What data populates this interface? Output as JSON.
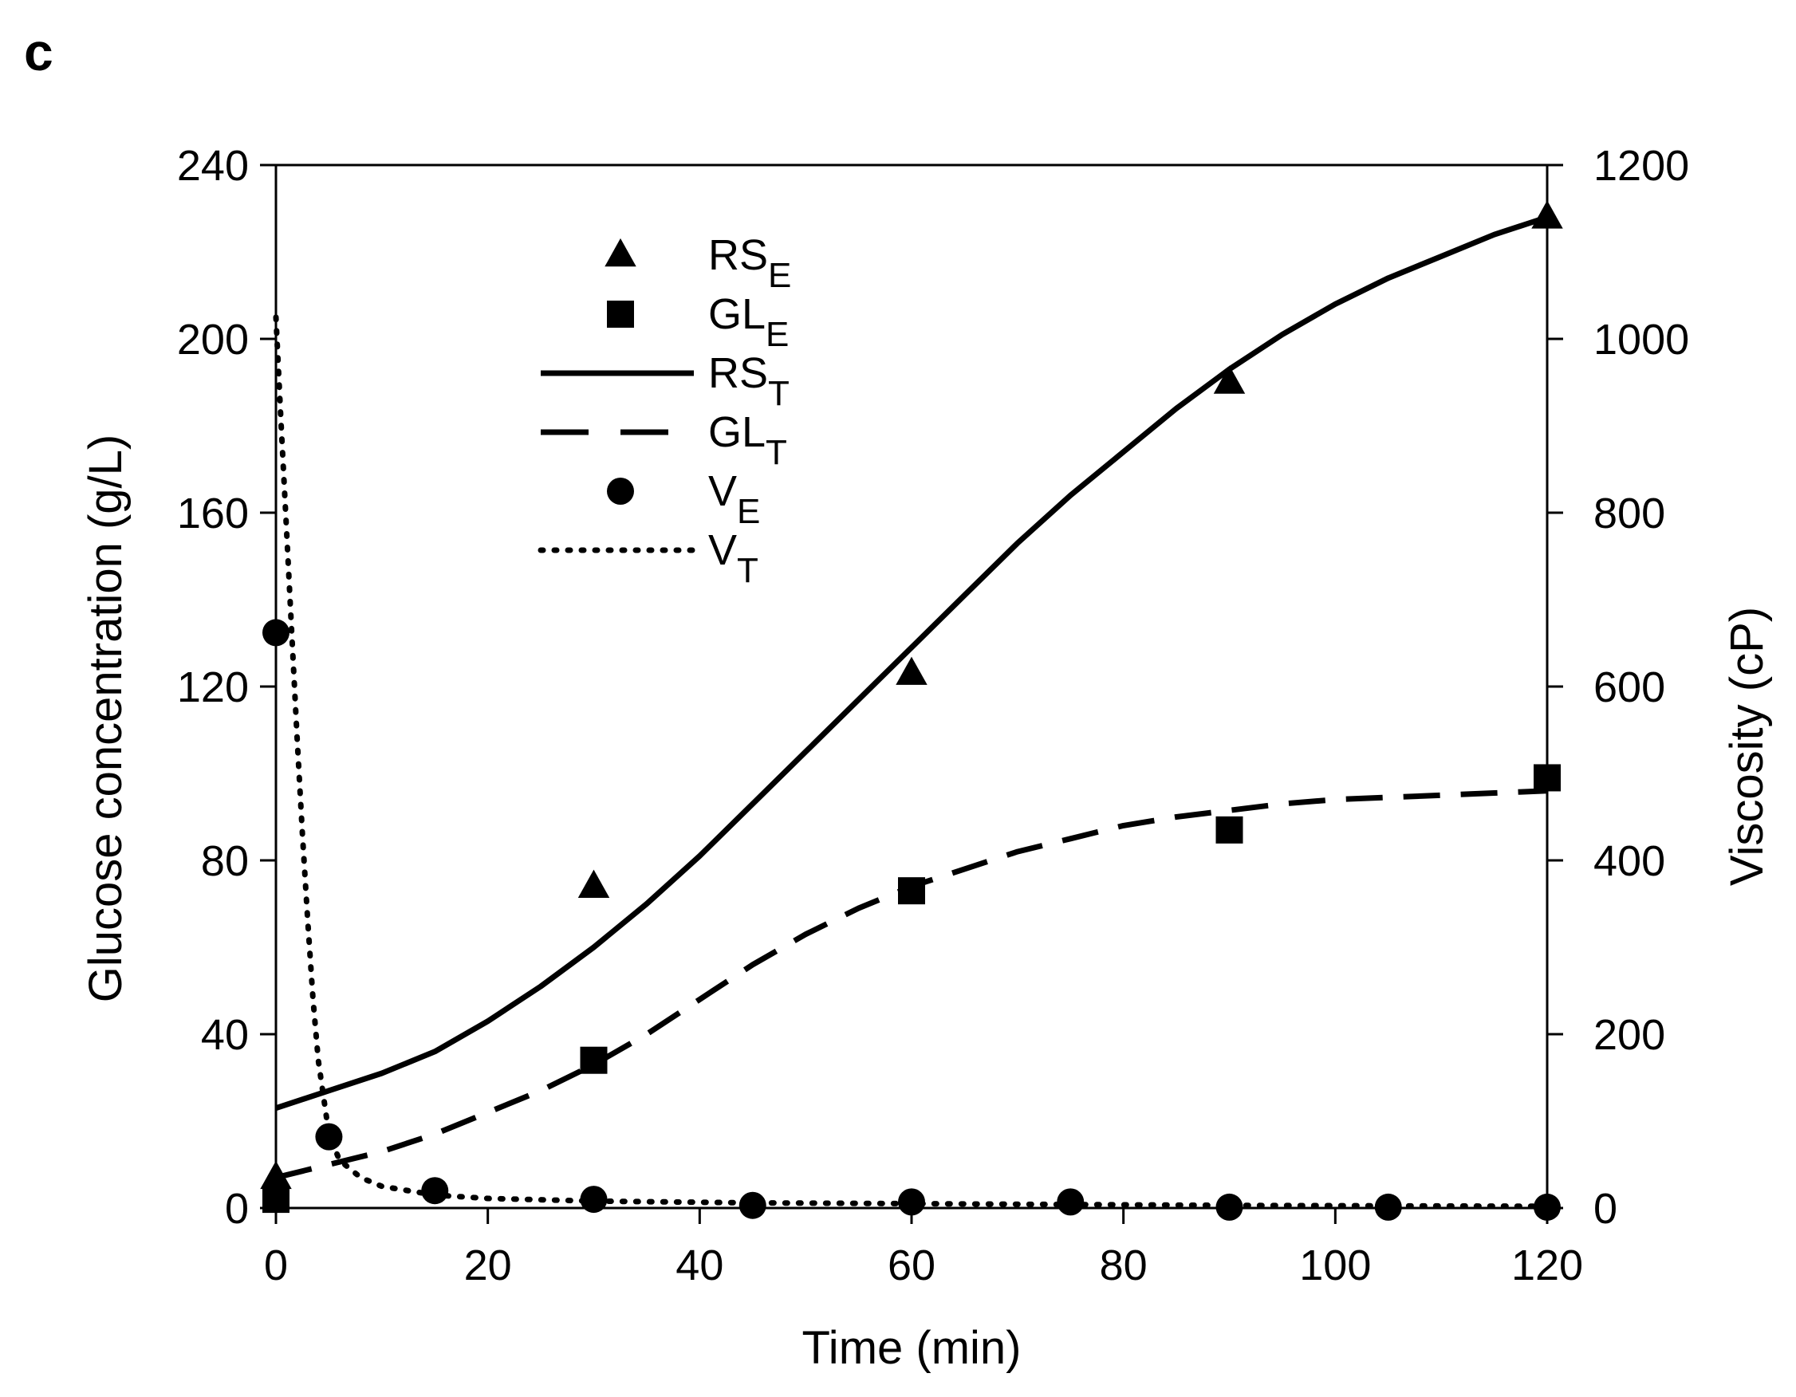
{
  "panel_label": "c",
  "chart_data": {
    "type": "scatter",
    "xlabel": "Time (min)",
    "ylabel": "Glucose concentration (g/L)",
    "y2label": "Viscosity (cP)",
    "xlim": [
      0,
      120
    ],
    "ylim": [
      0,
      240
    ],
    "y2lim": [
      0,
      1200
    ],
    "x_ticks": [
      0,
      20,
      40,
      60,
      80,
      100,
      120
    ],
    "y_ticks": [
      0,
      40,
      80,
      120,
      160,
      200,
      240
    ],
    "y2_ticks": [
      0,
      200,
      400,
      600,
      800,
      1000,
      1200
    ],
    "grid": false,
    "legend_position": "top-left",
    "colors": {
      "ink": "#000000",
      "background": "#ffffff"
    },
    "series": [
      {
        "name": "RSE",
        "label_main": "RS",
        "label_sub": "E",
        "kind": "marker",
        "marker": "triangle",
        "axis": "left",
        "x": [
          0,
          30,
          60,
          90,
          120
        ],
        "y": [
          7,
          74,
          123,
          190,
          228
        ]
      },
      {
        "name": "GLE",
        "label_main": "GL",
        "label_sub": "E",
        "kind": "marker",
        "marker": "square",
        "axis": "left",
        "x": [
          0,
          30,
          60,
          90,
          120
        ],
        "y": [
          2,
          34,
          73,
          87,
          99
        ]
      },
      {
        "name": "RST",
        "label_main": "RS",
        "label_sub": "T",
        "kind": "line",
        "line": "solid",
        "axis": "left",
        "x": [
          0,
          5,
          10,
          15,
          20,
          25,
          30,
          35,
          40,
          45,
          50,
          55,
          60,
          65,
          70,
          75,
          80,
          85,
          90,
          95,
          100,
          105,
          110,
          115,
          120
        ],
        "y": [
          23,
          27,
          31,
          36,
          43,
          51,
          60,
          70,
          81,
          93,
          105,
          117,
          129,
          141,
          153,
          164,
          174,
          184,
          193,
          201,
          208,
          214,
          219,
          224,
          228
        ]
      },
      {
        "name": "GLT",
        "label_main": "GL",
        "label_sub": "T",
        "kind": "line",
        "line": "dashed",
        "axis": "left",
        "x": [
          0,
          5,
          10,
          15,
          20,
          25,
          30,
          35,
          40,
          45,
          50,
          55,
          60,
          65,
          70,
          75,
          80,
          85,
          90,
          95,
          100,
          105,
          110,
          115,
          120
        ],
        "y": [
          7,
          10,
          13,
          17,
          22,
          27,
          33,
          40,
          48,
          56,
          63,
          69,
          74,
          78,
          82,
          85,
          88,
          90,
          91.5,
          93,
          94,
          94.5,
          95,
          95.5,
          96
        ]
      },
      {
        "name": "VE",
        "label_main": "V",
        "label_sub": "E",
        "kind": "marker",
        "marker": "circle",
        "axis": "right",
        "x": [
          0,
          5,
          15,
          30,
          45,
          60,
          75,
          90,
          105,
          120
        ],
        "y": [
          662,
          82,
          20,
          10,
          3,
          7,
          7,
          1,
          1,
          1
        ]
      },
      {
        "name": "VT",
        "label_main": "V",
        "label_sub": "T",
        "kind": "line",
        "line": "dotted",
        "axis": "right",
        "x": [
          0,
          0.5,
          1,
          1.5,
          2,
          2.5,
          3,
          3.5,
          4,
          5,
          6,
          8,
          10,
          15,
          20,
          30,
          45,
          60,
          90,
          120
        ],
        "y": [
          1025,
          900,
          780,
          660,
          540,
          430,
          330,
          240,
          170,
          85,
          55,
          35,
          25,
          15,
          11,
          8,
          6,
          5,
          3,
          2
        ]
      }
    ]
  }
}
